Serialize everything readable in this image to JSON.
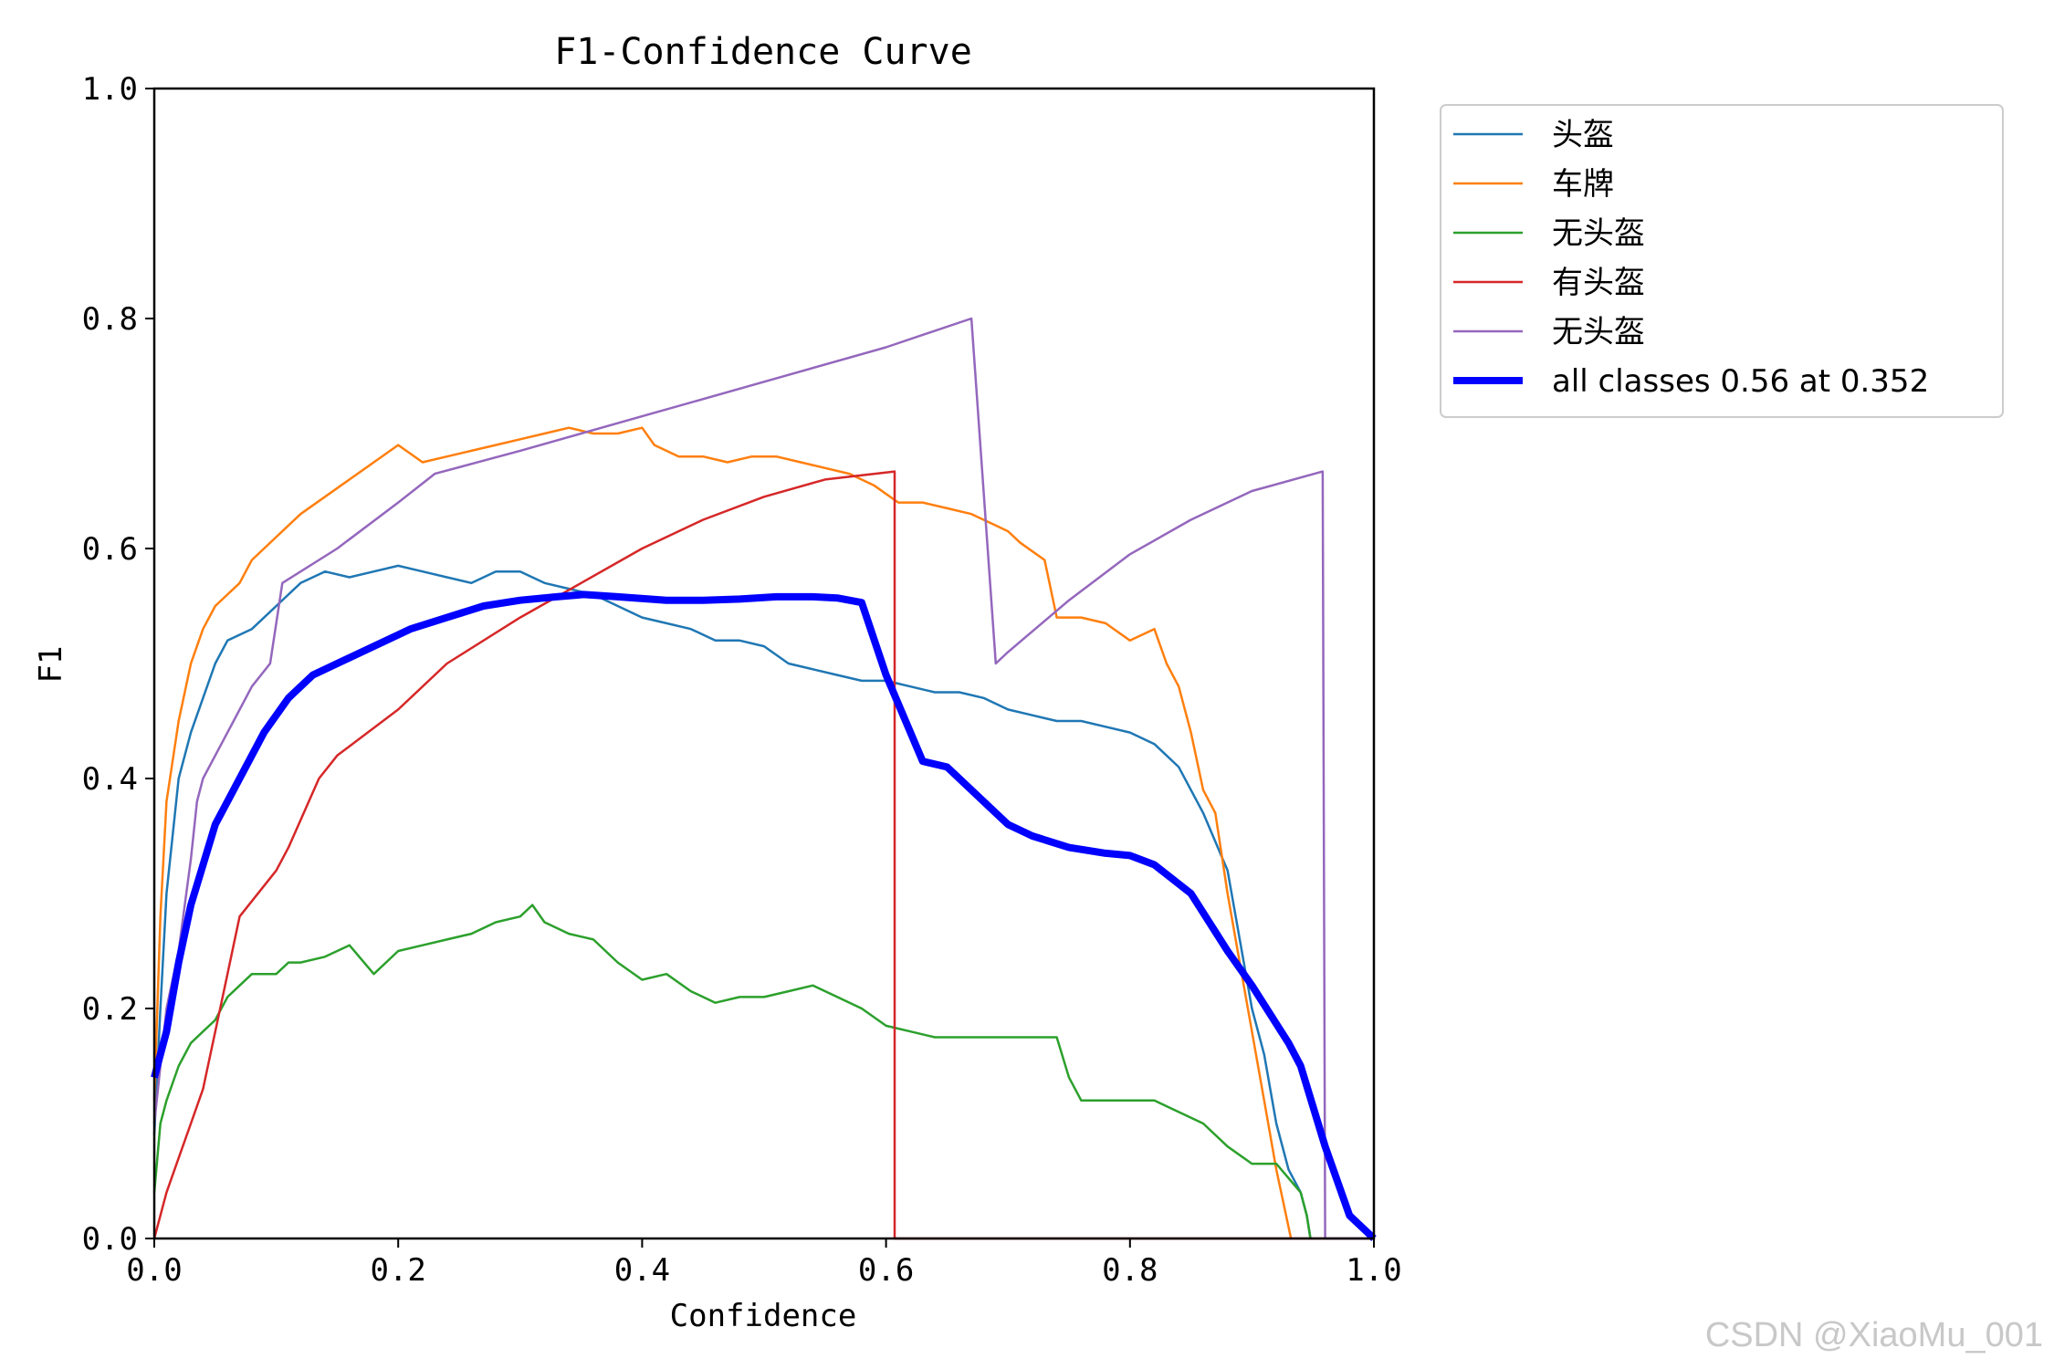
{
  "chart_data": {
    "type": "line",
    "title": "F1-Confidence Curve",
    "xlabel": "Confidence",
    "ylabel": "F1",
    "xlim": [
      0,
      1
    ],
    "ylim": [
      0,
      1
    ],
    "xticks": [
      "0.0",
      "0.2",
      "0.4",
      "0.6",
      "0.8",
      "1.0"
    ],
    "yticks": [
      "0.0",
      "0.2",
      "0.4",
      "0.6",
      "0.8",
      "1.0"
    ],
    "grid": false,
    "legend_position": "outside-top-right",
    "series": [
      {
        "name": "头盔",
        "color": "#1f77b4",
        "width": 2.5,
        "x": [
          0,
          0.005,
          0.01,
          0.02,
          0.03,
          0.04,
          0.05,
          0.06,
          0.08,
          0.1,
          0.12,
          0.14,
          0.16,
          0.18,
          0.2,
          0.22,
          0.24,
          0.26,
          0.28,
          0.3,
          0.32,
          0.34,
          0.36,
          0.38,
          0.4,
          0.42,
          0.44,
          0.46,
          0.48,
          0.5,
          0.52,
          0.54,
          0.56,
          0.58,
          0.6,
          0.62,
          0.64,
          0.66,
          0.68,
          0.7,
          0.72,
          0.74,
          0.76,
          0.78,
          0.8,
          0.82,
          0.84,
          0.86,
          0.88,
          0.9,
          0.91,
          0.92,
          0.93,
          0.94,
          0.945,
          0.948
        ],
        "y": [
          0.09,
          0.2,
          0.3,
          0.4,
          0.44,
          0.47,
          0.5,
          0.52,
          0.53,
          0.55,
          0.57,
          0.58,
          0.575,
          0.58,
          0.585,
          0.58,
          0.575,
          0.57,
          0.58,
          0.58,
          0.57,
          0.565,
          0.56,
          0.55,
          0.54,
          0.535,
          0.53,
          0.52,
          0.52,
          0.515,
          0.5,
          0.495,
          0.49,
          0.485,
          0.485,
          0.48,
          0.475,
          0.475,
          0.47,
          0.46,
          0.455,
          0.45,
          0.45,
          0.445,
          0.44,
          0.43,
          0.41,
          0.37,
          0.32,
          0.2,
          0.16,
          0.1,
          0.06,
          0.04,
          0.02,
          0
        ]
      },
      {
        "name": "车牌",
        "color": "#ff7f0e",
        "width": 2.5,
        "x": [
          0,
          0.005,
          0.01,
          0.02,
          0.03,
          0.04,
          0.05,
          0.06,
          0.07,
          0.08,
          0.1,
          0.12,
          0.14,
          0.16,
          0.18,
          0.2,
          0.22,
          0.24,
          0.26,
          0.28,
          0.3,
          0.32,
          0.34,
          0.36,
          0.38,
          0.4,
          0.41,
          0.43,
          0.45,
          0.47,
          0.49,
          0.51,
          0.53,
          0.55,
          0.57,
          0.59,
          0.61,
          0.63,
          0.65,
          0.67,
          0.69,
          0.7,
          0.71,
          0.73,
          0.74,
          0.76,
          0.78,
          0.8,
          0.82,
          0.83,
          0.84,
          0.85,
          0.86,
          0.87,
          0.88,
          0.89,
          0.9,
          0.91,
          0.92,
          0.93,
          0.932
        ],
        "y": [
          0.12,
          0.28,
          0.38,
          0.45,
          0.5,
          0.53,
          0.55,
          0.56,
          0.57,
          0.59,
          0.61,
          0.63,
          0.645,
          0.66,
          0.675,
          0.69,
          0.675,
          0.68,
          0.685,
          0.69,
          0.695,
          0.7,
          0.705,
          0.7,
          0.7,
          0.705,
          0.69,
          0.68,
          0.68,
          0.675,
          0.68,
          0.68,
          0.675,
          0.67,
          0.665,
          0.655,
          0.64,
          0.64,
          0.635,
          0.63,
          0.62,
          0.615,
          0.605,
          0.59,
          0.54,
          0.54,
          0.535,
          0.52,
          0.53,
          0.5,
          0.48,
          0.44,
          0.39,
          0.37,
          0.3,
          0.24,
          0.18,
          0.12,
          0.06,
          0.01,
          0
        ]
      },
      {
        "name": "无头盔",
        "color": "#2ca02c",
        "width": 2.5,
        "x": [
          0,
          0.005,
          0.01,
          0.02,
          0.03,
          0.04,
          0.05,
          0.06,
          0.07,
          0.08,
          0.1,
          0.11,
          0.12,
          0.14,
          0.16,
          0.18,
          0.2,
          0.22,
          0.24,
          0.26,
          0.28,
          0.3,
          0.31,
          0.32,
          0.34,
          0.36,
          0.38,
          0.4,
          0.42,
          0.44,
          0.46,
          0.48,
          0.5,
          0.52,
          0.54,
          0.56,
          0.58,
          0.6,
          0.62,
          0.64,
          0.66,
          0.68,
          0.7,
          0.72,
          0.74,
          0.75,
          0.76,
          0.8,
          0.82,
          0.86,
          0.88,
          0.9,
          0.92,
          0.94,
          0.945,
          0.948
        ],
        "y": [
          0.04,
          0.1,
          0.12,
          0.15,
          0.17,
          0.18,
          0.19,
          0.21,
          0.22,
          0.23,
          0.23,
          0.24,
          0.24,
          0.245,
          0.255,
          0.23,
          0.25,
          0.255,
          0.26,
          0.265,
          0.275,
          0.28,
          0.29,
          0.275,
          0.265,
          0.26,
          0.24,
          0.225,
          0.23,
          0.215,
          0.205,
          0.21,
          0.21,
          0.215,
          0.22,
          0.21,
          0.2,
          0.185,
          0.18,
          0.175,
          0.175,
          0.175,
          0.175,
          0.175,
          0.175,
          0.14,
          0.12,
          0.12,
          0.12,
          0.1,
          0.08,
          0.065,
          0.065,
          0.04,
          0.02,
          0
        ]
      },
      {
        "name": "有头盔",
        "color": "#d62728",
        "width": 2.5,
        "x": [
          0,
          0.01,
          0.02,
          0.03,
          0.04,
          0.05,
          0.06,
          0.07,
          0.1,
          0.11,
          0.135,
          0.15,
          0.2,
          0.24,
          0.3,
          0.35,
          0.4,
          0.45,
          0.5,
          0.55,
          0.607,
          0.607,
          0.61,
          0.7,
          0.8,
          0.9,
          1.0
        ],
        "y": [
          0,
          0.04,
          0.07,
          0.1,
          0.13,
          0.18,
          0.23,
          0.28,
          0.32,
          0.34,
          0.4,
          0.42,
          0.46,
          0.5,
          0.54,
          0.57,
          0.6,
          0.625,
          0.645,
          0.66,
          0.667,
          0,
          0,
          0,
          0,
          0,
          0
        ]
      },
      {
        "name": "无头盔",
        "color": "#9467bd",
        "width": 2.5,
        "x": [
          0,
          0.01,
          0.02,
          0.03,
          0.035,
          0.04,
          0.06,
          0.08,
          0.095,
          0.105,
          0.15,
          0.2,
          0.23,
          0.3,
          0.4,
          0.5,
          0.6,
          0.67,
          0.69,
          0.7,
          0.75,
          0.8,
          0.85,
          0.9,
          0.958,
          0.96,
          1.0
        ],
        "y": [
          0.1,
          0.2,
          0.25,
          0.33,
          0.38,
          0.4,
          0.44,
          0.48,
          0.5,
          0.57,
          0.6,
          0.64,
          0.665,
          0.685,
          0.715,
          0.745,
          0.775,
          0.8,
          0.5,
          0.51,
          0.555,
          0.595,
          0.625,
          0.65,
          0.667,
          0,
          0
        ]
      },
      {
        "name": "all classes 0.56 at 0.352",
        "color": "#0000ff",
        "width": 8,
        "x": [
          0,
          0.01,
          0.02,
          0.03,
          0.05,
          0.07,
          0.09,
          0.11,
          0.13,
          0.15,
          0.18,
          0.21,
          0.24,
          0.27,
          0.3,
          0.33,
          0.352,
          0.38,
          0.42,
          0.45,
          0.48,
          0.51,
          0.54,
          0.56,
          0.58,
          0.6,
          0.63,
          0.65,
          0.7,
          0.72,
          0.75,
          0.78,
          0.8,
          0.82,
          0.85,
          0.88,
          0.9,
          0.93,
          0.94,
          0.96,
          0.98,
          1.0
        ],
        "y": [
          0.14,
          0.18,
          0.24,
          0.29,
          0.36,
          0.4,
          0.44,
          0.47,
          0.49,
          0.5,
          0.515,
          0.53,
          0.54,
          0.55,
          0.555,
          0.558,
          0.56,
          0.558,
          0.555,
          0.555,
          0.556,
          0.558,
          0.558,
          0.557,
          0.553,
          0.49,
          0.415,
          0.41,
          0.36,
          0.35,
          0.34,
          0.335,
          0.333,
          0.325,
          0.3,
          0.25,
          0.22,
          0.17,
          0.15,
          0.08,
          0.02,
          0
        ]
      }
    ]
  },
  "watermark": "CSDN @XiaoMu_001"
}
